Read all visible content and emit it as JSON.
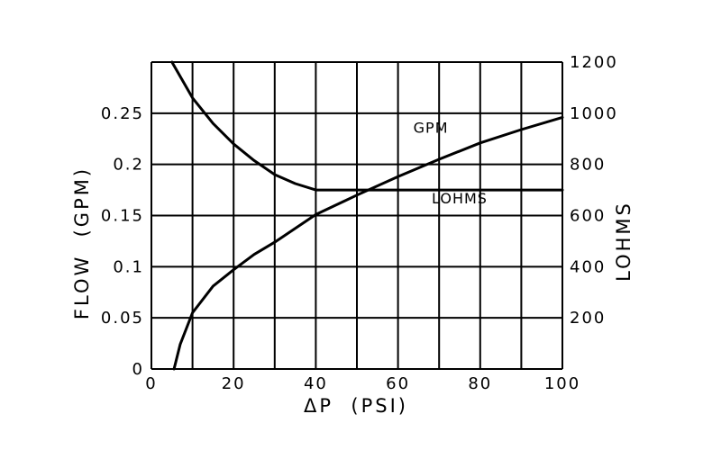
{
  "chart_data": {
    "type": "line",
    "xlabel": "ΔP  (PSI)",
    "ylabel_left": "FLOW  (GPM)",
    "ylabel_right": "LOHMS",
    "xlim": [
      0,
      100
    ],
    "ylim_left": [
      0,
      0.3
    ],
    "ylim_right": [
      0,
      1200
    ],
    "x_ticks": [
      "0",
      "20",
      "40",
      "60",
      "80",
      "100"
    ],
    "y_left_ticks": [
      "0",
      "0.05",
      "0.1",
      "0.15",
      "0.2",
      "0.25"
    ],
    "y_right_ticks": [
      "200",
      "400",
      "600",
      "800",
      "1000",
      "1200"
    ],
    "grid": true,
    "series": [
      {
        "name": "GPM",
        "axis": "left",
        "x": [
          5.5,
          7,
          10,
          15,
          20,
          25,
          30,
          40,
          50,
          60,
          70,
          80,
          90,
          100
        ],
        "values": [
          0,
          0.024,
          0.055,
          0.081,
          0.097,
          0.112,
          0.124,
          0.151,
          0.17,
          0.188,
          0.205,
          0.221,
          0.234,
          0.246
        ]
      },
      {
        "name": "LOHMS",
        "axis": "right",
        "x": [
          5,
          10,
          15,
          20,
          25,
          30,
          35,
          40,
          50,
          60,
          70,
          80,
          90,
          100
        ],
        "values": [
          1200,
          1060,
          960,
          880,
          815,
          760,
          725,
          700,
          700,
          700,
          700,
          700,
          700,
          700
        ]
      }
    ],
    "annotations": [
      {
        "text": "GPM",
        "x": 68,
        "y_left": 0.231
      },
      {
        "text": "LOHMS",
        "x": 75,
        "y_left": 0.162
      }
    ]
  }
}
